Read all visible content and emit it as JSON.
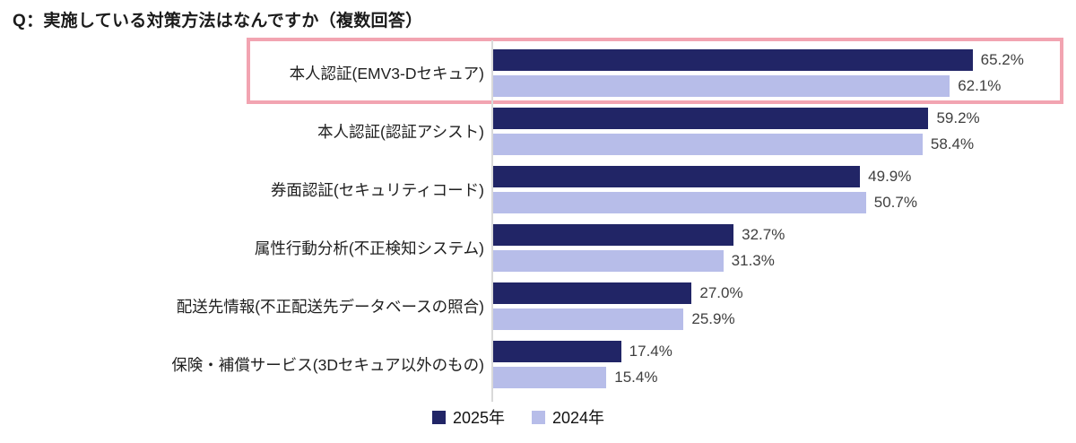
{
  "page": {
    "background": "#ffffff"
  },
  "chart_data": {
    "type": "bar",
    "orientation": "horizontal",
    "title": "Q：実施している対策方法はなんですか（複数回答）",
    "categories": [
      "本人認証(EMV3-Dセキュア)",
      "本人認証(認証アシスト)",
      "券面認証(セキュリティコード)",
      "属性行動分析(不正検知システム)",
      "配送先情報(不正配送先データベースの照合)",
      "保険・補償サービス(3Dセキュア以外のもの)"
    ],
    "series": [
      {
        "name": "2025年",
        "color": "#212566",
        "values": [
          65.2,
          59.2,
          49.9,
          32.7,
          27.0,
          17.4
        ]
      },
      {
        "name": "2024年",
        "color": "#B7BDE9",
        "values": [
          62.1,
          58.4,
          50.7,
          31.3,
          25.9,
          15.4
        ]
      }
    ],
    "value_suffix": "%",
    "value_decimals": 1,
    "xlim": [
      0,
      100
    ],
    "grid": false,
    "legend_position": "bottom",
    "axis_line_color": "#D9D9D9",
    "highlight": {
      "category_index": 0,
      "border_color": "#F2A4B1"
    }
  }
}
